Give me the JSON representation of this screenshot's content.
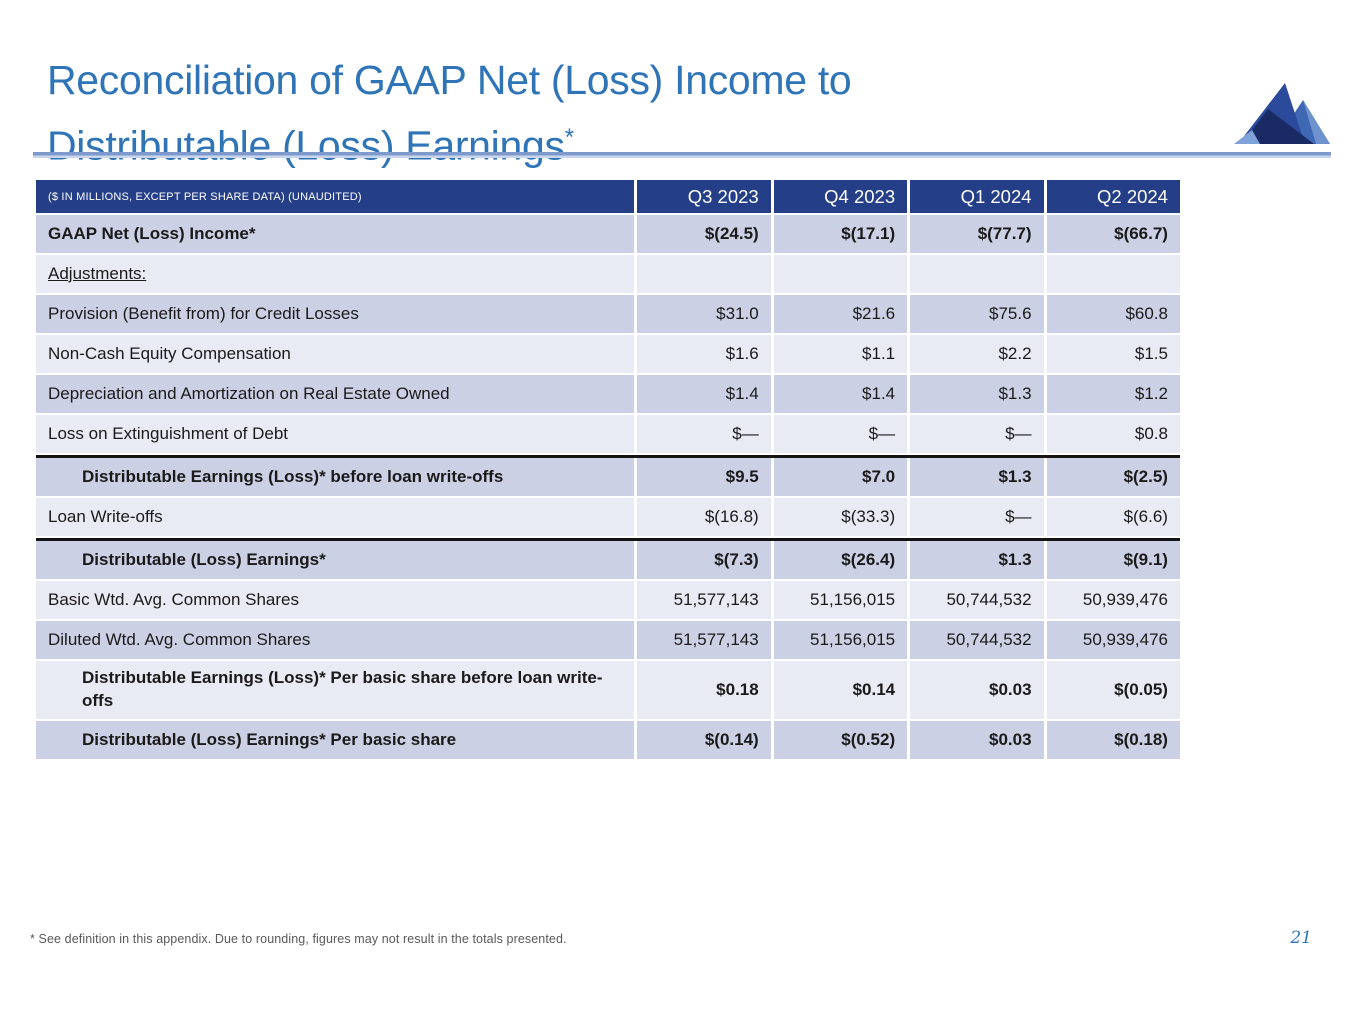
{
  "slide": {
    "title_line1": "Reconciliation of GAAP Net (Loss) Income to",
    "title_line2": "Distributable (Loss) Earnings",
    "title_sup": "*",
    "footnote": "* See definition in this appendix. Due to rounding, figures may not result in the totals presented.",
    "page_number": "21"
  },
  "colors": {
    "title_blue": "#2e74b7",
    "header_bg": "#243e88",
    "row_dark": "#cbd0e4",
    "row_light": "#e8eaf4",
    "rule_blue": "#7e9acd",
    "logo_main": "#2b4a9b",
    "logo_right": "#3e68b4",
    "logo_dark": "#1a2a64",
    "logo_light": "#7fa3d8"
  },
  "table": {
    "header": {
      "caption": "($ IN MILLIONS, EXCEPT PER SHARE DATA) (UNAUDITED)",
      "columns": [
        "Q3 2023",
        "Q4 2023",
        "Q1 2024",
        "Q2 2024"
      ]
    },
    "rows": [
      {
        "label": "GAAP Net (Loss) Income*",
        "values": [
          "$(24.5)",
          "$(17.1)",
          "$(77.7)",
          "$(66.7)"
        ],
        "bold": true
      },
      {
        "label": "Adjustments:",
        "values": [
          "",
          "",
          "",
          ""
        ],
        "underline": true
      },
      {
        "label": "Provision (Benefit from) for Credit Losses",
        "values": [
          "$31.0",
          "$21.6",
          "$75.6",
          "$60.8"
        ]
      },
      {
        "label": "Non-Cash Equity Compensation",
        "values": [
          "$1.6",
          "$1.1",
          "$2.2",
          "$1.5"
        ]
      },
      {
        "label": "Depreciation and Amortization on Real Estate Owned",
        "values": [
          "$1.4",
          "$1.4",
          "$1.3",
          "$1.2"
        ]
      },
      {
        "label": "Loss on Extinguishment of Debt",
        "values": [
          "$—",
          "$—",
          "$—",
          "$0.8"
        ]
      },
      {
        "label": "Distributable Earnings (Loss)* before loan write-offs",
        "values": [
          "$9.5",
          "$7.0",
          "$1.3",
          "$(2.5)"
        ],
        "bold": true,
        "indent": true,
        "thick_top": true
      },
      {
        "label": "Loan Write-offs",
        "values": [
          "$(16.8)",
          "$(33.3)",
          "$—",
          "$(6.6)"
        ]
      },
      {
        "label": "Distributable (Loss) Earnings*",
        "values": [
          "$(7.3)",
          "$(26.4)",
          "$1.3",
          "$(9.1)"
        ],
        "bold": true,
        "indent": true,
        "thick_top": true
      },
      {
        "label": "Basic Wtd. Avg. Common Shares",
        "values": [
          "51,577,143",
          "51,156,015",
          "50,744,532",
          "50,939,476"
        ]
      },
      {
        "label": "Diluted Wtd. Avg. Common Shares",
        "values": [
          "51,577,143",
          "51,156,015",
          "50,744,532",
          "50,939,476"
        ]
      },
      {
        "label": "Distributable Earnings (Loss)* Per basic share before loan write-offs",
        "values": [
          "$0.18",
          "$0.14",
          "$0.03",
          "$(0.05)"
        ],
        "bold": true,
        "indent": true,
        "tall": true
      },
      {
        "label": "Distributable (Loss) Earnings* Per basic share",
        "values": [
          "$(0.14)",
          "$(0.52)",
          "$0.03",
          "$(0.18)"
        ],
        "bold": true,
        "indent": true
      }
    ]
  }
}
